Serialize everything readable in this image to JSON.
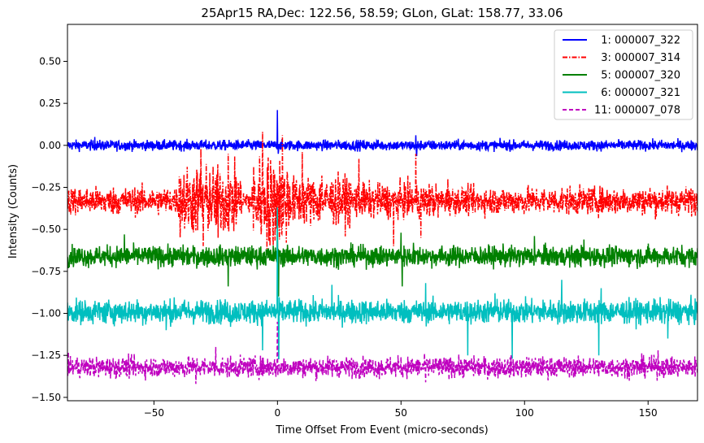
{
  "chart_data": {
    "type": "line",
    "title": "25Apr15 RA,Dec:  122.56,  58.59; GLon, GLat:  158.77,  33.06",
    "xlabel": "Time Offset From Event (micro-seconds)",
    "ylabel": "Intensity (Counts)",
    "xlim": [
      -85,
      170
    ],
    "ylim": [
      -1.52,
      0.72
    ],
    "xticks": [
      -50,
      0,
      50,
      100,
      150
    ],
    "xtick_labels": [
      "−50",
      "0",
      "50",
      "100",
      "150"
    ],
    "yticks": [
      0.5,
      0.25,
      0.0,
      -0.25,
      -0.5,
      -0.75,
      -1.0,
      -1.25,
      -1.5
    ],
    "ytick_labels": [
      "0.50",
      "0.25",
      "0.00",
      "−0.25",
      "−0.50",
      "−0.75",
      "−1.00",
      "−1.25",
      "−1.50"
    ],
    "grid": false,
    "legend_position": "top-right",
    "series": [
      {
        "name": "1: 000007_322",
        "color": "#0000ff",
        "style": "solid",
        "baseline": 0.0,
        "noise": 0.015,
        "spikes": [
          [
            0,
            0.21
          ],
          [
            0.3,
            -0.05
          ],
          [
            -74,
            0.05
          ],
          [
            56,
            0.06
          ],
          [
            56.3,
            -0.06
          ],
          [
            170,
            -0.03
          ]
        ]
      },
      {
        "name": "3: 000007_314",
        "color": "#ff0000",
        "style": "dashdot",
        "baseline": -0.33,
        "noise": 0.04,
        "bursts": [
          [
            -40,
            -15,
            0.1
          ],
          [
            -10,
            5,
            0.13
          ],
          [
            5,
            30,
            0.07
          ],
          [
            30,
            65,
            0.05
          ]
        ],
        "spikes": [
          [
            -31,
            -0.02
          ],
          [
            -30,
            -0.6
          ],
          [
            -20,
            -0.05
          ],
          [
            -24,
            -0.55
          ],
          [
            -6,
            0.08
          ],
          [
            -3,
            -0.6
          ],
          [
            2,
            0.06
          ],
          [
            10,
            -0.04
          ],
          [
            18,
            -0.18
          ],
          [
            33,
            -0.08
          ],
          [
            47,
            -0.6
          ],
          [
            56,
            -0.05
          ],
          [
            58,
            -0.55
          ],
          [
            69,
            -0.2
          ]
        ]
      },
      {
        "name": "5: 000007_320",
        "color": "#008000",
        "style": "solid",
        "baseline": -0.66,
        "noise": 0.03,
        "spikes": [
          [
            -62,
            -0.53
          ],
          [
            -20,
            -0.84
          ],
          [
            0,
            -0.4
          ],
          [
            0.4,
            -0.9
          ],
          [
            50,
            -0.52
          ],
          [
            50.5,
            -0.84
          ],
          [
            55,
            -0.58
          ],
          [
            104,
            -0.54
          ],
          [
            124,
            -0.56
          ]
        ]
      },
      {
        "name": "6: 000007_321",
        "color": "#00bfbf",
        "style": "solid",
        "baseline": -0.99,
        "noise": 0.035,
        "spikes": [
          [
            -45,
            -1.1
          ],
          [
            -19,
            -1.08
          ],
          [
            0,
            -0.37
          ],
          [
            0.5,
            -1.27
          ],
          [
            -6,
            -1.22
          ],
          [
            22,
            -0.83
          ],
          [
            60,
            -0.82
          ],
          [
            77,
            -1.25
          ],
          [
            88,
            -0.88
          ],
          [
            95,
            -1.27
          ],
          [
            115,
            -0.8
          ],
          [
            130,
            -1.25
          ],
          [
            131,
            -0.85
          ],
          [
            158,
            -1.15
          ]
        ]
      },
      {
        "name": "11: 000007_078",
        "color": "#bf00bf",
        "style": "dashed",
        "baseline": -1.32,
        "noise": 0.03,
        "spikes": [
          [
            -25,
            -1.2
          ],
          [
            0,
            -1.05
          ],
          [
            -33,
            -1.42
          ],
          [
            60,
            -1.41
          ],
          [
            154,
            -1.22
          ]
        ]
      }
    ]
  }
}
